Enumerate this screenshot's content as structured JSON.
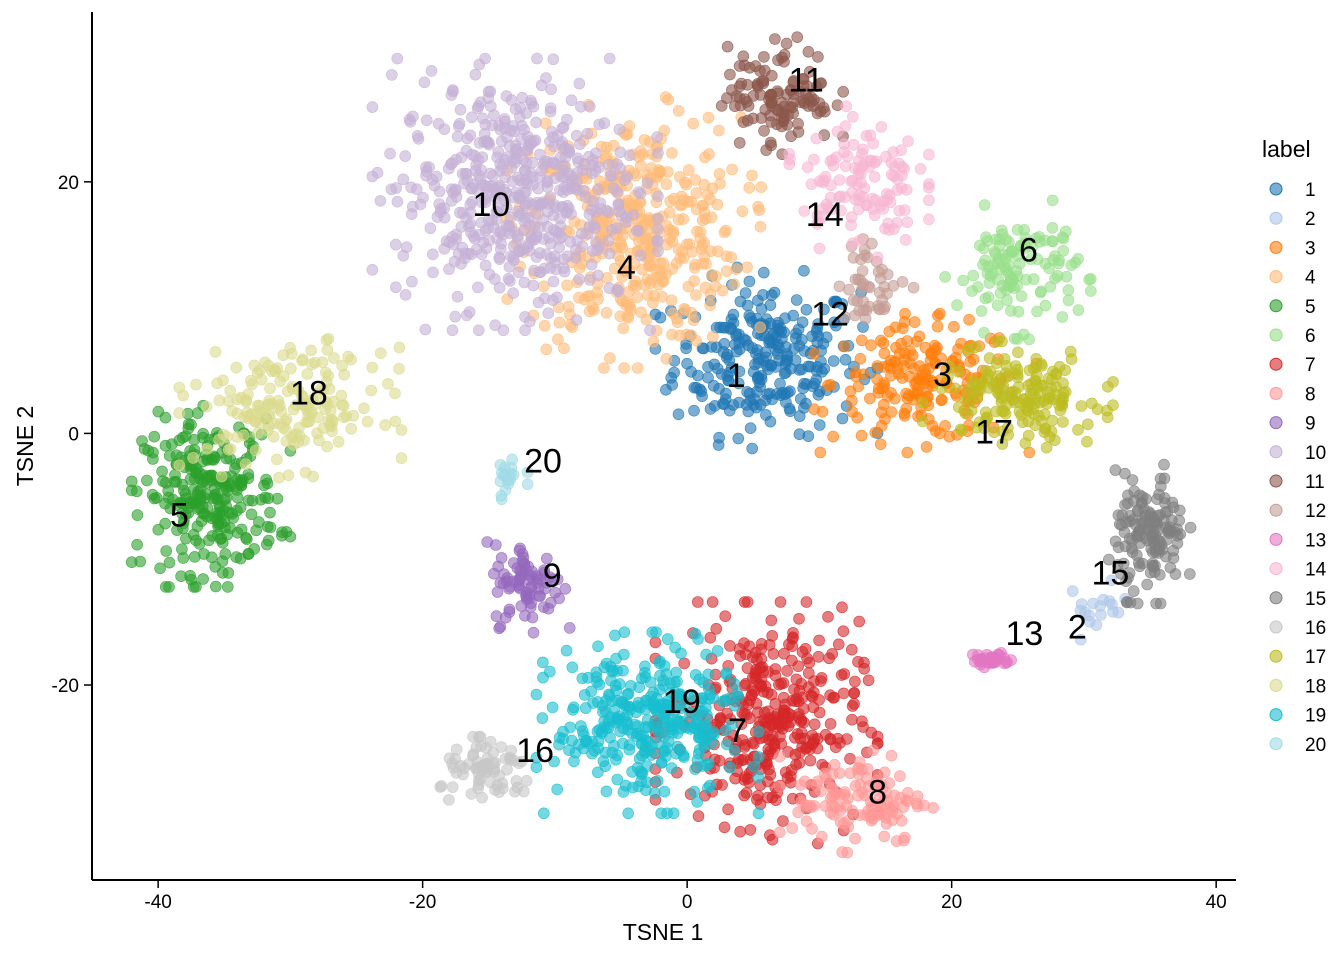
{
  "chart_data": {
    "type": "scatter",
    "xlabel": "TSNE 1",
    "ylabel": "TSNE 2",
    "xlim": [
      -45,
      41.5
    ],
    "ylim": [
      -35.5,
      33.5
    ],
    "xticks": [
      -40,
      -20,
      0,
      20,
      40
    ],
    "yticks": [
      -20,
      0,
      20
    ],
    "grid": false,
    "legend": {
      "title": "label",
      "placement": "right"
    },
    "point_opacity": 0.6,
    "clusters": [
      {
        "label": "1",
        "color": "#1f77b4",
        "center": [
          6,
          6
        ],
        "spread": [
          3.5,
          3.0
        ],
        "n": 260
      },
      {
        "label": "2",
        "color": "#aec7e8",
        "center": [
          31,
          -14
        ],
        "spread": [
          1.2,
          1.0
        ],
        "n": 18
      },
      {
        "label": "3",
        "color": "#ff7f0e",
        "center": [
          18,
          4
        ],
        "spread": [
          3.5,
          2.3
        ],
        "n": 190
      },
      {
        "label": "4",
        "color": "#ffbb78",
        "center": [
          -4,
          16
        ],
        "spread": [
          4.0,
          4.5
        ],
        "n": 400
      },
      {
        "label": "5",
        "color": "#2ca02c",
        "center": [
          -36,
          -5
        ],
        "spread": [
          2.5,
          3.0
        ],
        "n": 270
      },
      {
        "label": "6",
        "color": "#98df8a",
        "center": [
          25,
          13
        ],
        "spread": [
          2.3,
          2.3
        ],
        "n": 120
      },
      {
        "label": "7",
        "color": "#d62728",
        "center": [
          6,
          -23
        ],
        "spread": [
          3.5,
          4.0
        ],
        "n": 360
      },
      {
        "label": "8",
        "color": "#ff9896",
        "center": [
          13,
          -29
        ],
        "spread": [
          2.5,
          1.8
        ],
        "n": 120
      },
      {
        "label": "9",
        "color": "#9467bd",
        "center": [
          -12,
          -12
        ],
        "spread": [
          1.3,
          1.6
        ],
        "n": 80
      },
      {
        "label": "10",
        "color": "#c5b0d5",
        "center": [
          -13,
          19
        ],
        "spread": [
          4.5,
          4.5
        ],
        "n": 520
      },
      {
        "label": "11",
        "color": "#8c564b",
        "center": [
          7,
          27
        ],
        "spread": [
          2.0,
          2.0
        ],
        "n": 120
      },
      {
        "label": "12",
        "color": "#c49c94",
        "center": [
          14,
          12
        ],
        "spread": [
          1.3,
          1.6
        ],
        "n": 45
      },
      {
        "label": "13",
        "color": "#e377c2",
        "center": [
          23,
          -18
        ],
        "spread": [
          0.7,
          0.3
        ],
        "n": 40
      },
      {
        "label": "14",
        "color": "#f7b6d2",
        "center": [
          13,
          20
        ],
        "spread": [
          2.2,
          2.5
        ],
        "n": 120
      },
      {
        "label": "15",
        "color": "#7f7f7f",
        "center": [
          35,
          -8
        ],
        "spread": [
          1.3,
          2.3
        ],
        "n": 140
      },
      {
        "label": "16",
        "color": "#c7c7c7",
        "center": [
          -15,
          -27
        ],
        "spread": [
          1.8,
          1.2
        ],
        "n": 70
      },
      {
        "label": "17",
        "color": "#bcbd22",
        "center": [
          25,
          3
        ],
        "spread": [
          3.0,
          1.8
        ],
        "n": 170
      },
      {
        "label": "18",
        "color": "#dbdb8d",
        "center": [
          -30,
          2
        ],
        "spread": [
          3.5,
          2.3
        ],
        "n": 180
      },
      {
        "label": "19",
        "color": "#17becf",
        "center": [
          -3,
          -23
        ],
        "spread": [
          3.5,
          3.0
        ],
        "n": 330
      },
      {
        "label": "20",
        "color": "#9edae5",
        "center": [
          -13.5,
          -3.5
        ],
        "spread": [
          0.6,
          0.8
        ],
        "n": 18
      }
    ],
    "annotations": [
      {
        "text": "1",
        "x": 3.7,
        "y": 4.4
      },
      {
        "text": "2",
        "x": 29.5,
        "y": -15.6
      },
      {
        "text": "3",
        "x": 19.3,
        "y": 4.5
      },
      {
        "text": "4",
        "x": -4.6,
        "y": 13.0
      },
      {
        "text": "5",
        "x": -38.4,
        "y": -6.7
      },
      {
        "text": "6",
        "x": 25.8,
        "y": 14.4
      },
      {
        "text": "7",
        "x": 3.8,
        "y": -23.8
      },
      {
        "text": "8",
        "x": 14.4,
        "y": -28.7
      },
      {
        "text": "9",
        "x": -10.2,
        "y": -11.5
      },
      {
        "text": "10",
        "x": -14.8,
        "y": 18.0
      },
      {
        "text": "11",
        "x": 9.0,
        "y": 27.9
      },
      {
        "text": "12",
        "x": 10.8,
        "y": 9.3
      },
      {
        "text": "13",
        "x": 25.5,
        "y": -16.1
      },
      {
        "text": "14",
        "x": 10.4,
        "y": 17.2
      },
      {
        "text": "15",
        "x": 32.0,
        "y": -11.3
      },
      {
        "text": "16",
        "x": -11.5,
        "y": -25.4
      },
      {
        "text": "17",
        "x": 23.2,
        "y": -0.1
      },
      {
        "text": "18",
        "x": -28.6,
        "y": 3.0
      },
      {
        "text": "19",
        "x": -0.4,
        "y": -21.5
      },
      {
        "text": "20",
        "x": -10.9,
        "y": -2.4
      }
    ]
  }
}
